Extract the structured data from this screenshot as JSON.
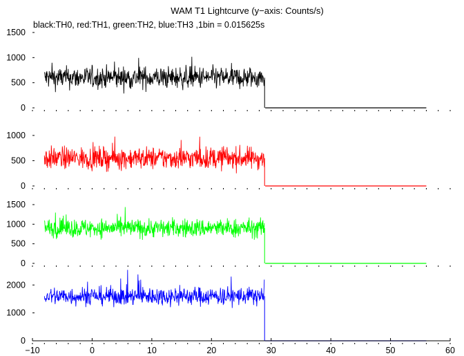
{
  "chart_data": {
    "type": "line",
    "title": "WAM T1 Lightcurve (y−axis: Counts/s)",
    "subtitle": "black:TH0, red:TH1, green:TH2, blue:TH3 ,1bin = 0.015625s",
    "xlim": [
      -10,
      60
    ],
    "x_ticks": [
      -10,
      0,
      10,
      20,
      30,
      40,
      50,
      60
    ],
    "x_tick_labels": [
      "−10",
      "0",
      "10",
      "20",
      "30",
      "40",
      "50",
      "60"
    ],
    "grid": false,
    "series": [
      {
        "name": "TH0",
        "color": "#000000",
        "ylim": [
          0,
          1500
        ],
        "y_ticks": [
          0,
          500,
          1000,
          1500
        ],
        "segments": [
          {
            "x_range": [
              -8,
              28.9
            ],
            "mean": 600,
            "spread": 200
          },
          {
            "x_range": [
              29,
              56
            ],
            "mean": 0,
            "spread": 0
          }
        ]
      },
      {
        "name": "TH1",
        "color": "#ff0000",
        "ylim": [
          0,
          1300
        ],
        "y_ticks": [
          0,
          500,
          1000
        ],
        "segments": [
          {
            "x_range": [
              -8,
              28.9
            ],
            "mean": 550,
            "spread": 200
          },
          {
            "x_range": [
              29,
              56
            ],
            "mean": 0,
            "spread": 0
          }
        ]
      },
      {
        "name": "TH2",
        "color": "#00ff00",
        "ylim": [
          0,
          1800
        ],
        "y_ticks": [
          0,
          500,
          1000,
          1500
        ],
        "segments": [
          {
            "x_range": [
              -8,
              28.9
            ],
            "mean": 900,
            "spread": 220
          },
          {
            "x_range": [
              29,
              56
            ],
            "mean": 0,
            "spread": 0
          }
        ]
      },
      {
        "name": "TH3",
        "color": "#0000ff",
        "ylim": [
          0,
          2700
        ],
        "y_ticks": [
          0,
          1000,
          2000
        ],
        "segments": [
          {
            "x_range": [
              -8,
              28.9
            ],
            "mean": 1600,
            "spread": 300
          },
          {
            "x_range": [
              29,
              56
            ],
            "mean": 0,
            "spread": 0
          }
        ]
      }
    ]
  }
}
